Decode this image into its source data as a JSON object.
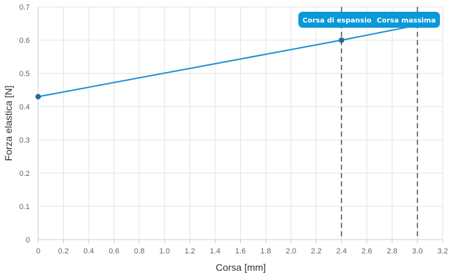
{
  "chart_data": {
    "type": "line",
    "xlabel": "Corsa [mm]",
    "ylabel": "Forza elastica [N]",
    "xlim": [
      0,
      3.2
    ],
    "ylim": [
      0,
      0.7
    ],
    "x_ticks": [
      "0",
      "0.2",
      "0.4",
      "0.6",
      "0.8",
      "1.0",
      "1.2",
      "1.4",
      "1.6",
      "1.8",
      "2.0",
      "2.2",
      "2.4",
      "2.6",
      "2.8",
      "3.0",
      "3.2"
    ],
    "y_ticks": [
      "0",
      "0.1",
      "0.2",
      "0.3",
      "0.4",
      "0.5",
      "0.6",
      "0.7"
    ],
    "grid": true,
    "series": [
      {
        "x": [
          0,
          2.4,
          3.0
        ],
        "y": [
          0.43,
          0.6,
          0.645
        ],
        "markers": [
          true,
          true,
          false
        ],
        "color": "#1a90d0"
      }
    ],
    "reference_lines": [
      {
        "x": 2.4,
        "label": "Corsa di espansio",
        "style": "dashed"
      },
      {
        "x": 3.0,
        "label": "Corsa massima",
        "style": "dashed"
      }
    ],
    "colors": {
      "line": "#1a90d0",
      "marker": "#1a6ea8",
      "badge": "#0a98d8",
      "grid": "#e3e3e3",
      "reference": "#555555"
    }
  }
}
